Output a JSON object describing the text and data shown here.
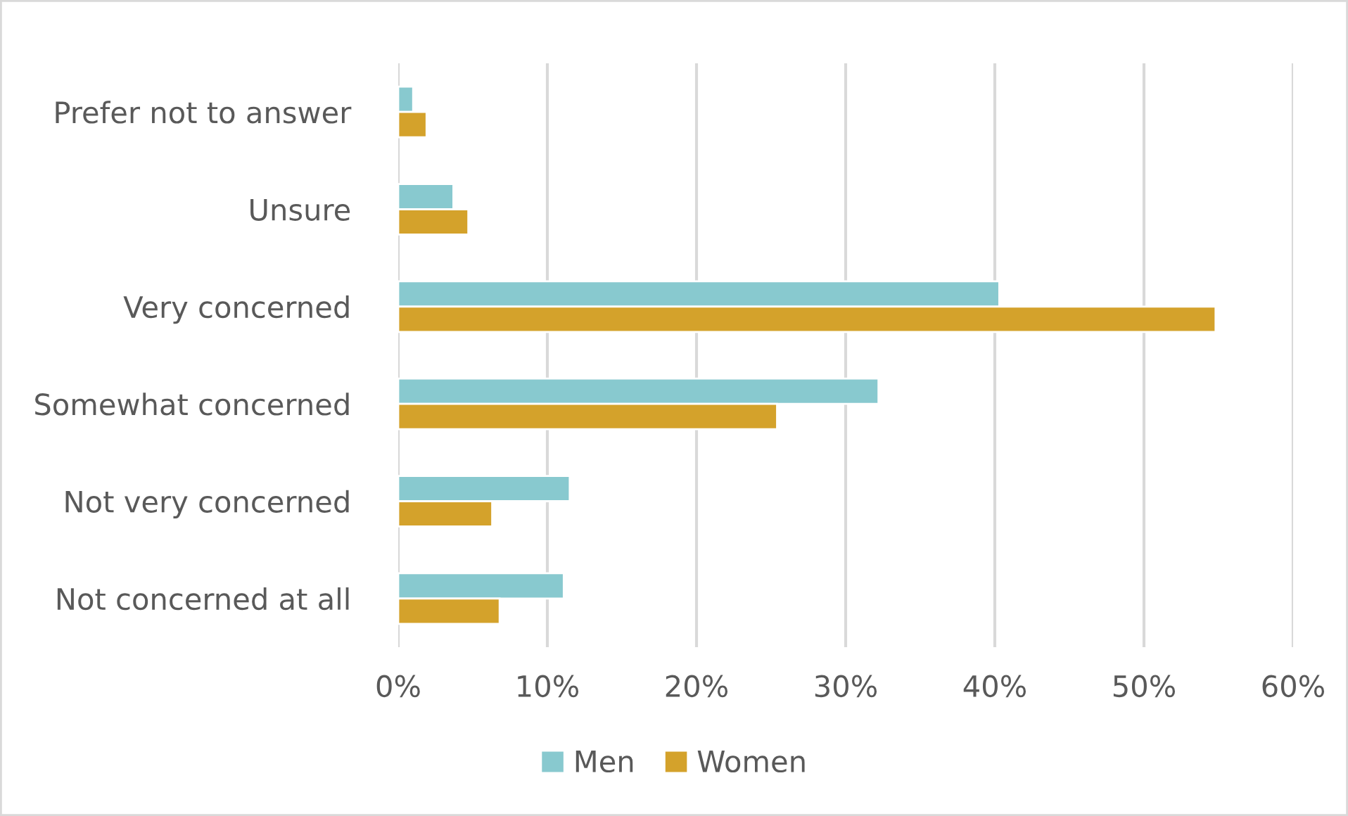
{
  "chart_data": {
    "type": "bar",
    "orientation": "horizontal",
    "categories": [
      "Prefer not to answer",
      "Unsure",
      "Very concerned",
      "Somewhat concerned",
      "Not very concerned",
      "Not concerned at all"
    ],
    "series": [
      {
        "name": "Men",
        "color": "#88c9cf",
        "values": [
          1.0,
          3.7,
          40.3,
          32.2,
          11.5,
          11.1
        ]
      },
      {
        "name": "Women",
        "color": "#d4a22b",
        "values": [
          1.9,
          4.7,
          54.8,
          25.4,
          6.3,
          6.8
        ]
      }
    ],
    "xlim": [
      0,
      60
    ],
    "xticks": [
      {
        "value": 0,
        "label": "0%"
      },
      {
        "value": 10,
        "label": "10%"
      },
      {
        "value": 20,
        "label": "20%"
      },
      {
        "value": 30,
        "label": "30%"
      },
      {
        "value": 40,
        "label": "40%"
      },
      {
        "value": 50,
        "label": "50%"
      },
      {
        "value": 60,
        "label": "60%"
      }
    ],
    "grid": "x",
    "legend": "bottom"
  }
}
